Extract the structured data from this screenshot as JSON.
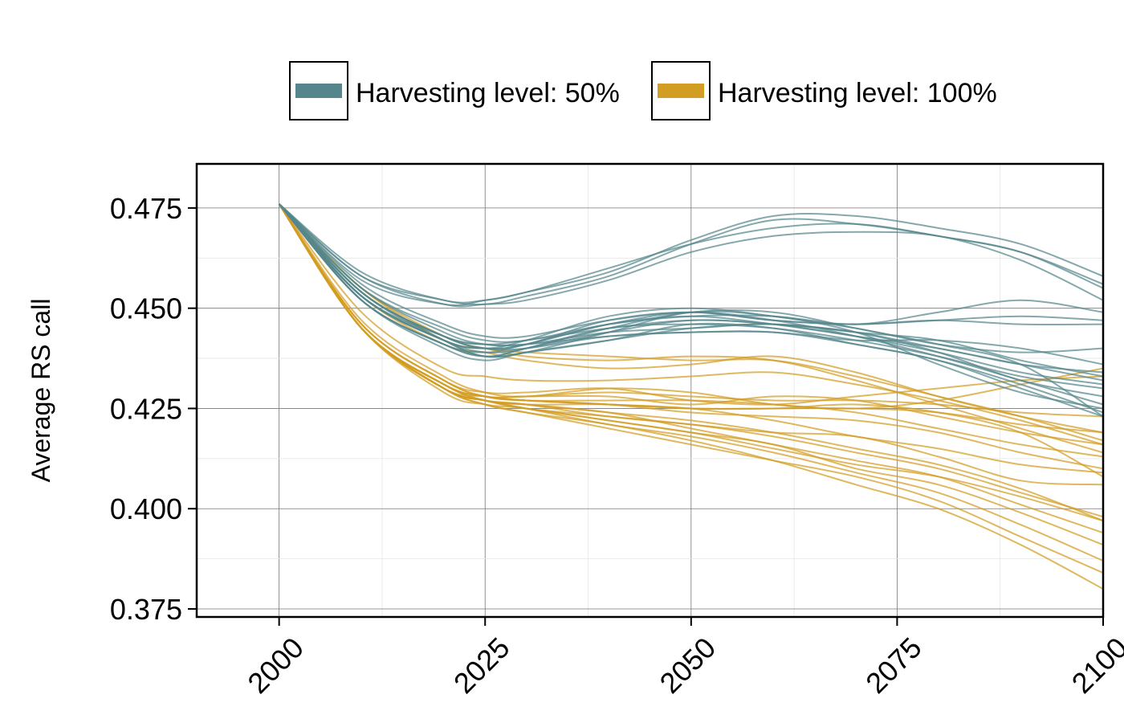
{
  "chart_data": {
    "type": "line",
    "xlabel": "",
    "ylabel": "Average RS call",
    "xlim": [
      1990,
      2100
    ],
    "ylim": [
      0.373,
      0.486
    ],
    "x_ticks": [
      "2000",
      "2025",
      "2050",
      "2075",
      "2100"
    ],
    "y_ticks": [
      "0.375",
      "0.400",
      "0.425",
      "0.450",
      "0.475"
    ],
    "grid": true,
    "legend_position": "top",
    "legend": [
      {
        "label": "Harvesting level: 50%",
        "color": "#55868c"
      },
      {
        "label": "Harvesting level: 100%",
        "color": "#d29d23"
      }
    ],
    "groups": [
      {
        "name": "Harvesting level: 50%",
        "color": "#55868c",
        "x": [
          2000,
          2010,
          2020,
          2025,
          2030,
          2040,
          2050,
          2060,
          2070,
          2080,
          2090,
          2100
        ],
        "series": [
          [
            0.476,
            0.459,
            0.452,
            0.452,
            0.454,
            0.459,
            0.467,
            0.473,
            0.473,
            0.47,
            0.466,
            0.458
          ],
          [
            0.476,
            0.458,
            0.452,
            0.451,
            0.453,
            0.458,
            0.466,
            0.472,
            0.471,
            0.468,
            0.464,
            0.456
          ],
          [
            0.476,
            0.458,
            0.451,
            0.451,
            0.452,
            0.457,
            0.464,
            0.468,
            0.469,
            0.468,
            0.462,
            0.452
          ],
          [
            0.476,
            0.457,
            0.451,
            0.452,
            0.454,
            0.46,
            0.466,
            0.47,
            0.471,
            0.468,
            0.464,
            0.455
          ],
          [
            0.476,
            0.456,
            0.446,
            0.443,
            0.443,
            0.447,
            0.449,
            0.447,
            0.446,
            0.447,
            0.448,
            0.447
          ],
          [
            0.476,
            0.455,
            0.445,
            0.442,
            0.442,
            0.446,
            0.448,
            0.448,
            0.446,
            0.449,
            0.452,
            0.449
          ],
          [
            0.476,
            0.455,
            0.444,
            0.441,
            0.441,
            0.444,
            0.445,
            0.446,
            0.444,
            0.44,
            0.436,
            0.432
          ],
          [
            0.476,
            0.454,
            0.443,
            0.44,
            0.44,
            0.443,
            0.444,
            0.444,
            0.441,
            0.437,
            0.431,
            0.424
          ],
          [
            0.476,
            0.454,
            0.443,
            0.44,
            0.441,
            0.446,
            0.449,
            0.447,
            0.443,
            0.438,
            0.432,
            0.426
          ],
          [
            0.476,
            0.453,
            0.442,
            0.439,
            0.44,
            0.444,
            0.447,
            0.446,
            0.444,
            0.439,
            0.432,
            0.428
          ],
          [
            0.476,
            0.453,
            0.442,
            0.438,
            0.439,
            0.442,
            0.446,
            0.445,
            0.441,
            0.437,
            0.43,
            0.423
          ],
          [
            0.476,
            0.452,
            0.441,
            0.438,
            0.439,
            0.444,
            0.449,
            0.448,
            0.444,
            0.436,
            0.429,
            0.425
          ],
          [
            0.476,
            0.453,
            0.442,
            0.44,
            0.442,
            0.448,
            0.45,
            0.448,
            0.445,
            0.441,
            0.439,
            0.44
          ],
          [
            0.476,
            0.452,
            0.441,
            0.439,
            0.441,
            0.446,
            0.448,
            0.446,
            0.443,
            0.44,
            0.436,
            0.434
          ],
          [
            0.476,
            0.452,
            0.44,
            0.437,
            0.439,
            0.442,
            0.445,
            0.446,
            0.444,
            0.442,
            0.437,
            0.433
          ],
          [
            0.476,
            0.453,
            0.442,
            0.44,
            0.441,
            0.447,
            0.449,
            0.447,
            0.446,
            0.447,
            0.446,
            0.446
          ],
          [
            0.476,
            0.452,
            0.441,
            0.438,
            0.44,
            0.445,
            0.446,
            0.445,
            0.442,
            0.438,
            0.433,
            0.43
          ],
          [
            0.476,
            0.454,
            0.443,
            0.441,
            0.442,
            0.445,
            0.447,
            0.446,
            0.443,
            0.439,
            0.434,
            0.431
          ],
          [
            0.476,
            0.453,
            0.443,
            0.441,
            0.441,
            0.443,
            0.444,
            0.444,
            0.442,
            0.442,
            0.44,
            0.436
          ],
          [
            0.476,
            0.454,
            0.442,
            0.438,
            0.44,
            0.445,
            0.449,
            0.449,
            0.445,
            0.441,
            0.436,
            0.423
          ]
        ]
      },
      {
        "name": "Harvesting level: 100%",
        "color": "#d29d23",
        "x": [
          2000,
          2010,
          2020,
          2025,
          2030,
          2040,
          2050,
          2060,
          2070,
          2080,
          2090,
          2100
        ],
        "series": [
          [
            0.476,
            0.455,
            0.443,
            0.44,
            0.439,
            0.438,
            0.437,
            0.437,
            0.433,
            0.428,
            0.423,
            0.417
          ],
          [
            0.476,
            0.455,
            0.442,
            0.44,
            0.438,
            0.437,
            0.438,
            0.437,
            0.432,
            0.426,
            0.42,
            0.414
          ],
          [
            0.476,
            0.453,
            0.441,
            0.439,
            0.437,
            0.435,
            0.436,
            0.438,
            0.434,
            0.428,
            0.423,
            0.419
          ],
          [
            0.476,
            0.449,
            0.435,
            0.433,
            0.432,
            0.432,
            0.433,
            0.434,
            0.431,
            0.427,
            0.422,
            0.416
          ],
          [
            0.476,
            0.447,
            0.433,
            0.429,
            0.428,
            0.43,
            0.429,
            0.426,
            0.425,
            0.427,
            0.431,
            0.435
          ],
          [
            0.476,
            0.446,
            0.432,
            0.429,
            0.429,
            0.43,
            0.427,
            0.426,
            0.428,
            0.43,
            0.432,
            0.433
          ],
          [
            0.476,
            0.446,
            0.432,
            0.428,
            0.428,
            0.428,
            0.426,
            0.428,
            0.427,
            0.423,
            0.419,
            0.416
          ],
          [
            0.476,
            0.446,
            0.432,
            0.428,
            0.427,
            0.427,
            0.427,
            0.426,
            0.424,
            0.42,
            0.416,
            0.413
          ],
          [
            0.476,
            0.445,
            0.431,
            0.428,
            0.428,
            0.429,
            0.428,
            0.427,
            0.427,
            0.426,
            0.424,
            0.423
          ],
          [
            0.476,
            0.445,
            0.431,
            0.428,
            0.427,
            0.426,
            0.425,
            0.425,
            0.425,
            0.424,
            0.421,
            0.419
          ],
          [
            0.476,
            0.445,
            0.431,
            0.428,
            0.427,
            0.426,
            0.424,
            0.423,
            0.422,
            0.419,
            0.414,
            0.41
          ],
          [
            0.476,
            0.445,
            0.431,
            0.427,
            0.426,
            0.426,
            0.425,
            0.425,
            0.426,
            0.424,
            0.419,
            0.408
          ],
          [
            0.476,
            0.445,
            0.431,
            0.427,
            0.426,
            0.424,
            0.422,
            0.419,
            0.415,
            0.411,
            0.405,
            0.397
          ],
          [
            0.476,
            0.445,
            0.43,
            0.427,
            0.425,
            0.423,
            0.421,
            0.418,
            0.414,
            0.41,
            0.404,
            0.398
          ],
          [
            0.476,
            0.445,
            0.43,
            0.427,
            0.425,
            0.422,
            0.419,
            0.416,
            0.41,
            0.406,
            0.399,
            0.391
          ],
          [
            0.476,
            0.445,
            0.43,
            0.427,
            0.425,
            0.421,
            0.418,
            0.414,
            0.409,
            0.404,
            0.396,
            0.387
          ],
          [
            0.476,
            0.445,
            0.43,
            0.426,
            0.424,
            0.42,
            0.416,
            0.412,
            0.408,
            0.402,
            0.393,
            0.384
          ],
          [
            0.476,
            0.445,
            0.43,
            0.426,
            0.424,
            0.421,
            0.417,
            0.412,
            0.406,
            0.4,
            0.391,
            0.38
          ],
          [
            0.476,
            0.445,
            0.429,
            0.426,
            0.425,
            0.422,
            0.419,
            0.415,
            0.411,
            0.408,
            0.403,
            0.397
          ],
          [
            0.476,
            0.445,
            0.43,
            0.427,
            0.426,
            0.423,
            0.421,
            0.419,
            0.418,
            0.413,
            0.407,
            0.406
          ],
          [
            0.476,
            0.445,
            0.43,
            0.428,
            0.427,
            0.426,
            0.425,
            0.422,
            0.418,
            0.415,
            0.411,
            0.409
          ],
          [
            0.476,
            0.445,
            0.43,
            0.427,
            0.426,
            0.424,
            0.42,
            0.416,
            0.412,
            0.408,
            0.401,
            0.394
          ]
        ]
      }
    ]
  }
}
